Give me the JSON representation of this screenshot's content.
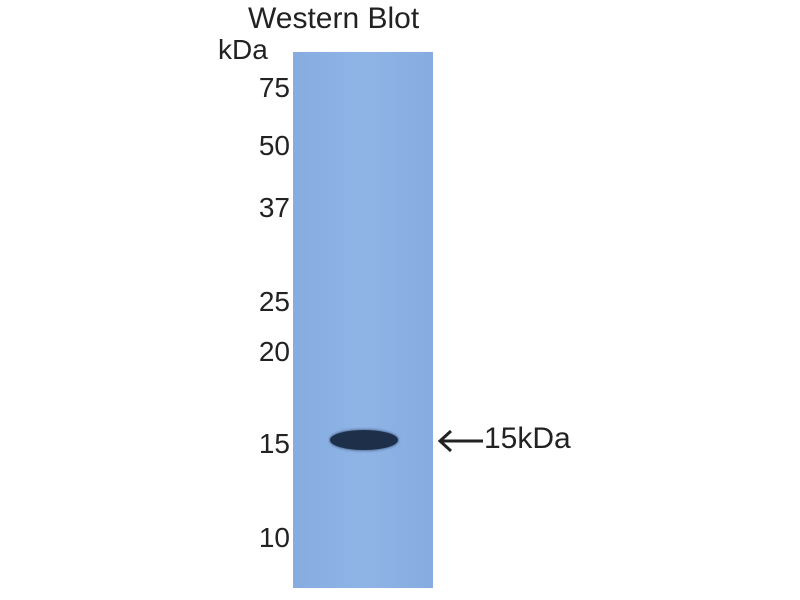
{
  "title": "Western Blot",
  "unit_label": "kDa",
  "markers": [
    "75",
    "50",
    "37",
    "25",
    "20",
    "15",
    "10"
  ],
  "band_label": "15kDa",
  "colors": {
    "membrane": "#8fb4e6",
    "band": "#1e2f4a"
  }
}
